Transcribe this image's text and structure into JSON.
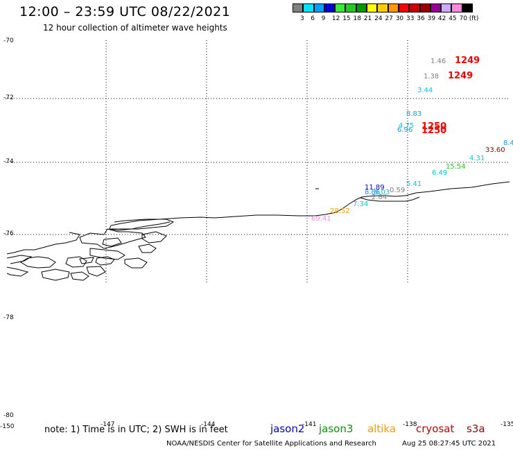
{
  "title": "12:00 – 23:59 UTC 08/22/2021",
  "subtitle": "12 hour collection of altimeter wave heights",
  "legend": {
    "swatches": [
      {
        "color": "#808080"
      },
      {
        "color": "#00e5ff"
      },
      {
        "color": "#00a0ff"
      },
      {
        "color": "#0000dd"
      },
      {
        "color": "#33ee33"
      },
      {
        "color": "#22cc22"
      },
      {
        "color": "#009900"
      },
      {
        "color": "#ffff00"
      },
      {
        "color": "#ffcc00"
      },
      {
        "color": "#ff9900"
      },
      {
        "color": "#ff0000"
      },
      {
        "color": "#cc0000"
      },
      {
        "color": "#990000"
      },
      {
        "color": "#990099"
      },
      {
        "color": "#ccaaff"
      },
      {
        "color": "#ff88dd"
      },
      {
        "color": "#000000"
      }
    ],
    "labels": [
      "3",
      "6",
      "9",
      "12",
      "15",
      "18",
      "21",
      "24",
      "27",
      "30",
      "33",
      "36",
      "39",
      "42",
      "45",
      "70",
      "(ft)"
    ]
  },
  "map": {
    "lat_labels": [
      "-70",
      "-72",
      "-74",
      "-76",
      "-78",
      "-80"
    ],
    "lon_labels": [
      "-150",
      "-147",
      "-144",
      "-141",
      "-138",
      "-135"
    ]
  },
  "observations": [
    {
      "text": "1.46",
      "color": "#808080",
      "big": false
    },
    {
      "text": "1249",
      "color": "#ff0000",
      "big": true
    },
    {
      "text": "1.38",
      "color": "#808080",
      "big": false
    },
    {
      "text": "1249",
      "color": "#ff0000",
      "big": true
    },
    {
      "text": "3.44",
      "color": "#00c8e6",
      "big": false
    },
    {
      "text": "8.83",
      "color": "#00a0ff",
      "big": false
    },
    {
      "text": "4.75",
      "color": "#00c8e6",
      "big": false
    },
    {
      "text": "6.96",
      "color": "#00a0ff",
      "big": false
    },
    {
      "text": "1250",
      "color": "#ff0000",
      "big": true
    },
    {
      "text": "1250",
      "color": "#ff0000",
      "big": true
    },
    {
      "text": "8.4",
      "color": "#00a0ff",
      "big": false
    },
    {
      "text": "33.60",
      "color": "#990000",
      "big": false
    },
    {
      "text": "4.31",
      "color": "#00c8e6",
      "big": false
    },
    {
      "text": "15.54",
      "color": "#22cc22",
      "big": false
    },
    {
      "text": "6.49",
      "color": "#00c8e6",
      "big": false
    },
    {
      "text": "5.41",
      "color": "#00c8e6",
      "big": false
    },
    {
      "text": "11.89",
      "color": "#0000dd",
      "big": false
    },
    {
      "text": "0.59",
      "color": "#808080",
      "big": false
    },
    {
      "text": "8.86",
      "color": "#00a0ff",
      "big": false
    },
    {
      "text": "9.03",
      "color": "#00c8e6",
      "big": false
    },
    {
      "text": "2.64",
      "color": "#808080",
      "big": false
    },
    {
      "text": "7.34",
      "color": "#00c8e6",
      "big": false
    },
    {
      "text": "28.52",
      "color": "#ff9900",
      "big": false
    },
    {
      "text": "69.41",
      "color": "#ff88dd",
      "big": false
    }
  ],
  "note": "note: 1) Time is in UTC; 2) SWH is in feet",
  "satellites": [
    {
      "name": "jason2",
      "color": "#0000dd"
    },
    {
      "name": "jason3",
      "color": "#009900"
    },
    {
      "name": "altika",
      "color": "#ff9900"
    },
    {
      "name": "cryosat",
      "color": "#cc0000"
    },
    {
      "name": "s3a",
      "color": "#990000"
    }
  ],
  "credit": "NOAA/NESDIS Center for Satellite Applications and Research",
  "timestamp": "Aug 25 08:27:45 UTC 2021"
}
